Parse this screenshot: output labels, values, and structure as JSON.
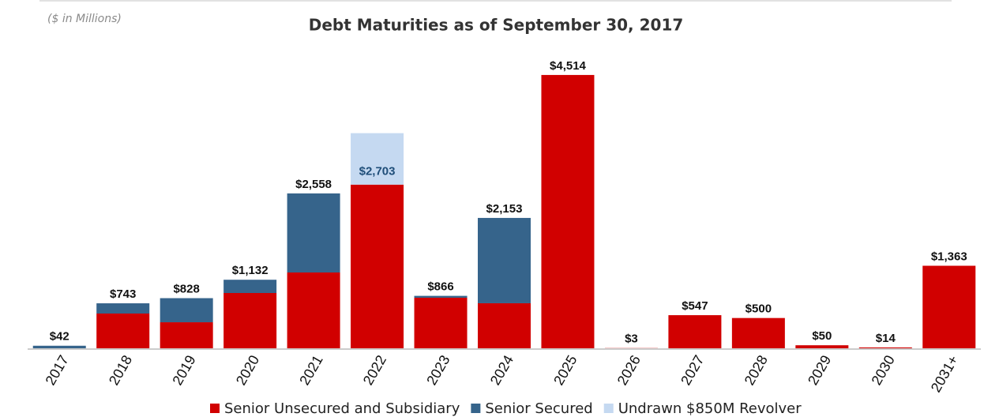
{
  "chart_data": {
    "type": "stacked_bar",
    "subtitle": "($ in Millions)",
    "title": "Debt Maturities as of September 30, 2017",
    "categories": [
      "2017",
      "2018",
      "2019",
      "2020",
      "2021",
      "2022",
      "2023",
      "2024",
      "2025",
      "2026",
      "2027",
      "2028",
      "2029",
      "2030",
      "2031+"
    ],
    "series": [
      {
        "name": "Senior Unsecured and Subsidiary",
        "color": "#d10000",
        "values": [
          0,
          574,
          430,
          913,
          1252,
          2703,
          835,
          744,
          4514,
          3,
          547,
          500,
          50,
          14,
          1363
        ]
      },
      {
        "name": "Senior Secured",
        "color": "#36648b",
        "values": [
          42,
          169,
          398,
          219,
          1306,
          0,
          31,
          1409,
          0,
          0,
          0,
          0,
          0,
          0,
          0
        ]
      },
      {
        "name": "Undrawn $850M Revolver",
        "color": "#c5d9f1",
        "values": [
          0,
          0,
          0,
          0,
          0,
          850,
          0,
          0,
          0,
          0,
          0,
          0,
          0,
          0,
          0
        ]
      }
    ],
    "totals": {
      "values": [
        42,
        743,
        828,
        1132,
        2558,
        2703,
        866,
        2153,
        4514,
        3,
        547,
        500,
        50,
        14,
        1363
      ],
      "value_labels": [
        "$42",
        "$743",
        "$828",
        "$1,132",
        "$2,558",
        "$2,703",
        "$866",
        "$2,153",
        "$4,514",
        "$3",
        "$547",
        "$500",
        "$50",
        "$14",
        "$1,363"
      ]
    },
    "ylim": [
      0,
      4800
    ]
  }
}
